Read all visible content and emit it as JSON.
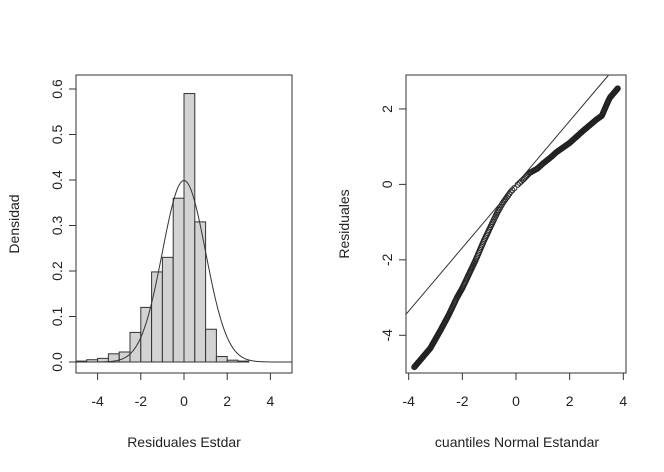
{
  "chart_data": [
    {
      "type": "histogram",
      "title": "",
      "xlabel": "Residuales Estdar",
      "ylabel": "Densidad",
      "xlim": [
        -5,
        5
      ],
      "ylim": [
        0,
        0.6
      ],
      "xticks": [
        -4,
        -2,
        0,
        2,
        4
      ],
      "yticks": [
        0.0,
        0.1,
        0.2,
        0.3,
        0.4,
        0.5,
        0.6
      ],
      "xtick_labels": [
        "-4",
        "-2",
        "0",
        "2",
        "4"
      ],
      "ytick_labels": [
        "0.0",
        "0.1",
        "0.2",
        "0.3",
        "0.4",
        "0.5",
        "0.6"
      ],
      "bin_edges": [
        -5,
        -4.5,
        -4,
        -3.5,
        -3,
        -2.5,
        -2,
        -1.5,
        -1,
        -0.5,
        0,
        0.5,
        1,
        1.5,
        2,
        2.5,
        3
      ],
      "values": [
        0.002,
        0.005,
        0.008,
        0.018,
        0.022,
        0.065,
        0.12,
        0.198,
        0.23,
        0.36,
        0.59,
        0.308,
        0.072,
        0.012,
        0.004,
        0.002
      ],
      "bar_color": "#d3d3d3",
      "overlay_curve": {
        "type": "normal_density",
        "mean": 0,
        "sd": 1
      },
      "grid": false
    },
    {
      "type": "scatter",
      "title": "",
      "xlabel": "cuantiles Normal Estandar",
      "ylabel": "Residuales",
      "xlim": [
        -4.1,
        4.1
      ],
      "ylim": [
        -5,
        2.9
      ],
      "xticks": [
        -4,
        -2,
        0,
        2,
        4
      ],
      "yticks": [
        -4,
        -2,
        0,
        2
      ],
      "xtick_labels": [
        "-4",
        "-2",
        "0",
        "2",
        "4"
      ],
      "ytick_labels": [
        "-4",
        "-2",
        "0",
        "2"
      ],
      "points_profile": {
        "x": [
          -3.8,
          -3.5,
          -3.2,
          -3.0,
          -2.8,
          -2.5,
          -2.2,
          -2.0,
          -1.8,
          -1.5,
          -1.2,
          -1.0,
          -0.7,
          -0.5,
          -0.2,
          0,
          0.3,
          0.5,
          0.8,
          1.0,
          1.3,
          1.5,
          2.0,
          2.5,
          3.0,
          3.2,
          3.4,
          3.5,
          3.8
        ],
        "y": [
          -4.85,
          -4.6,
          -4.35,
          -4.1,
          -3.85,
          -3.45,
          -3.0,
          -2.75,
          -2.45,
          -2.0,
          -1.5,
          -1.2,
          -0.75,
          -0.5,
          -0.2,
          -0.05,
          0.15,
          0.3,
          0.42,
          0.55,
          0.72,
          0.85,
          1.1,
          1.42,
          1.72,
          1.82,
          2.15,
          2.3,
          2.55
        ]
      },
      "reference_line": {
        "intercept": 0,
        "slope": 0.84
      },
      "grid": false
    }
  ]
}
